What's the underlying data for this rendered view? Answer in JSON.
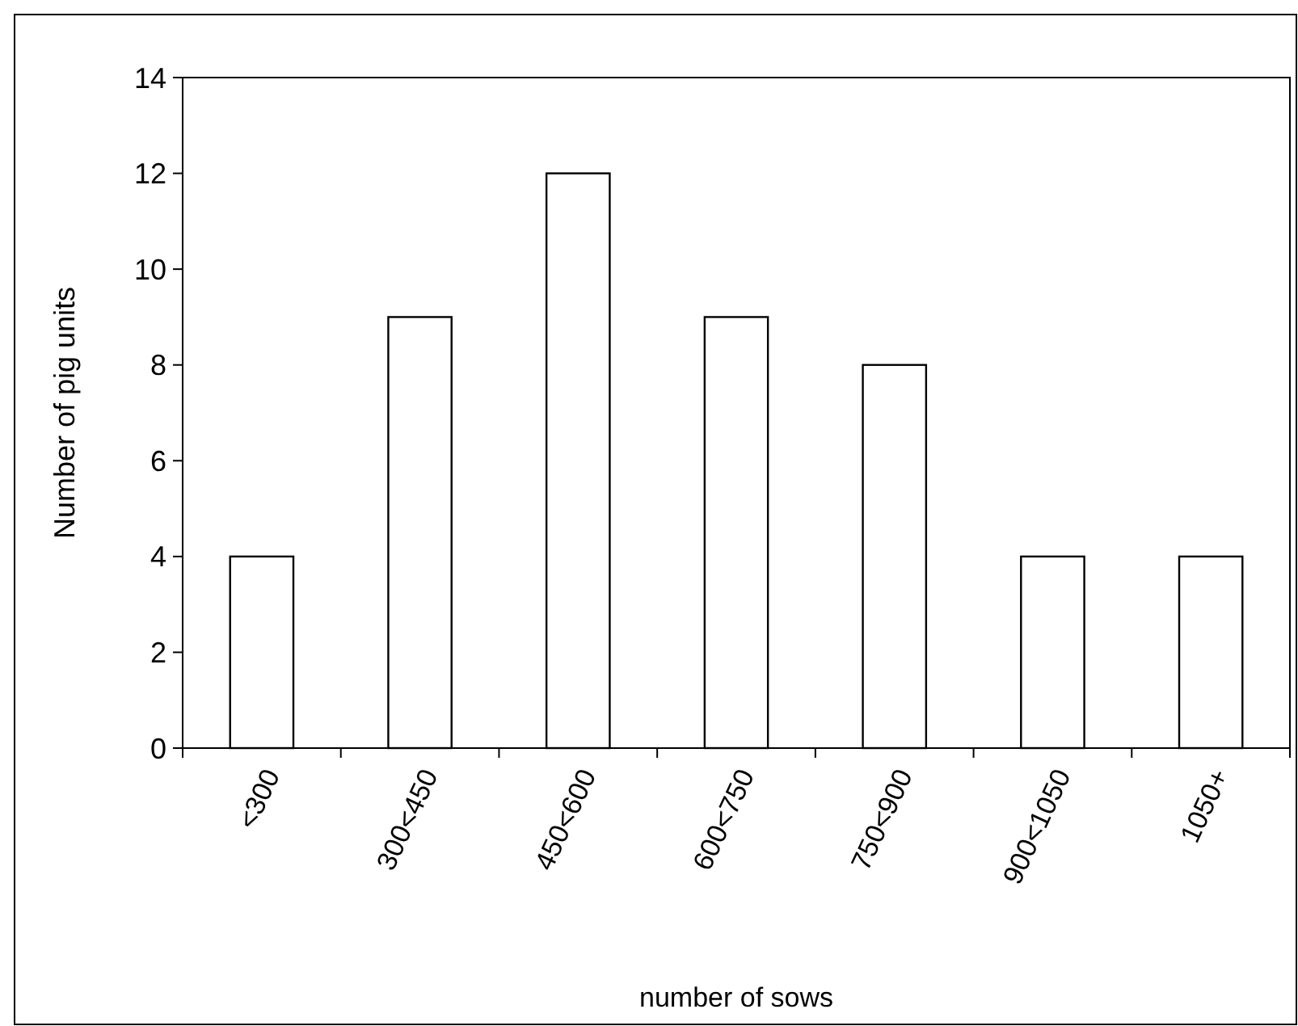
{
  "chart_data": {
    "type": "bar",
    "xlabel": "number of sows",
    "ylabel": "Number of pig units",
    "categories": [
      "<300",
      "300<450",
      "450<600",
      "600<750",
      "750<900",
      "900<1050",
      "1050+"
    ],
    "values": [
      4,
      9,
      12,
      9,
      8,
      4,
      4
    ],
    "color": "#ffffff",
    "ylim": [
      0,
      14
    ],
    "yticks": [
      0,
      2,
      4,
      6,
      8,
      10,
      12,
      14
    ]
  }
}
